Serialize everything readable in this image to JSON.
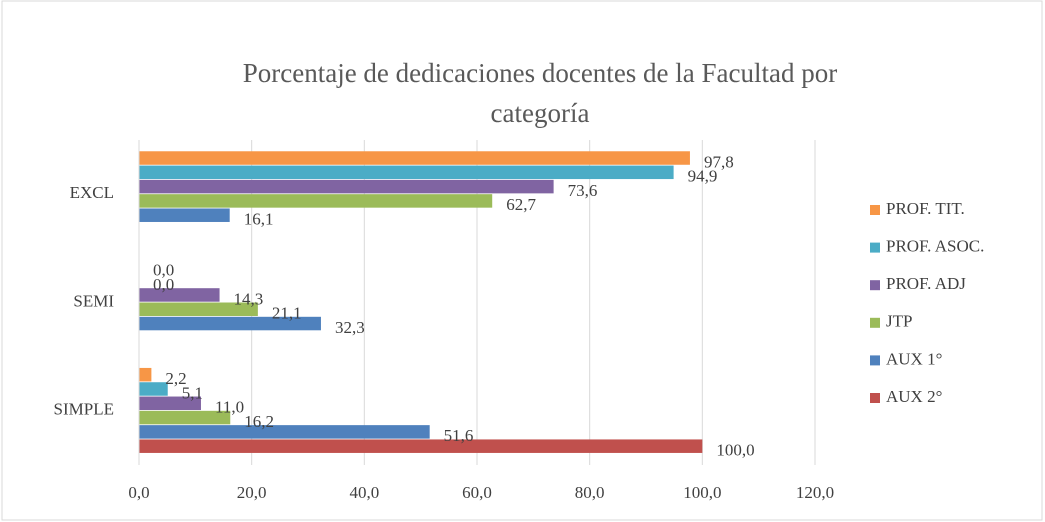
{
  "chart_data": {
    "type": "barh",
    "title": [
      "Porcentaje de dedicaciones docentes de la Facultad por",
      "categoría"
    ],
    "categories": [
      "SIMPLE",
      "SEMI",
      "EXCL"
    ],
    "series": [
      {
        "name": "AUX 2°",
        "color": "#c0504d",
        "values": [
          100.0,
          null,
          null
        ],
        "value_labels": [
          "100,0",
          null,
          null
        ]
      },
      {
        "name": "AUX 1°",
        "color": "#4f81bd",
        "values": [
          51.6,
          32.3,
          16.1
        ],
        "value_labels": [
          "51,6",
          "32,3",
          "16,1"
        ]
      },
      {
        "name": "JTP",
        "color": "#9bbb59",
        "values": [
          16.2,
          21.1,
          62.7
        ],
        "value_labels": [
          "16,2",
          "21,1",
          "62,7"
        ]
      },
      {
        "name": "PROF. ADJ",
        "color": "#8064a2",
        "values": [
          11.0,
          14.3,
          73.6
        ],
        "value_labels": [
          "11,0",
          "14,3",
          "73,6"
        ]
      },
      {
        "name": "PROF. ASOC.",
        "color": "#4bacc6",
        "values": [
          5.1,
          0.0,
          94.9
        ],
        "value_labels": [
          "5,1",
          "0,0",
          "94,9"
        ]
      },
      {
        "name": "PROF. TIT.",
        "color": "#f79646",
        "values": [
          2.2,
          0.0,
          97.8
        ],
        "value_labels": [
          "2,2",
          "0,0",
          "97,8"
        ]
      }
    ],
    "xlim": [
      0,
      120
    ],
    "xticks": [
      {
        "value": 0,
        "label": "0,0"
      },
      {
        "value": 20,
        "label": "20,0"
      },
      {
        "value": 40,
        "label": "40,0"
      },
      {
        "value": 60,
        "label": "60,0"
      },
      {
        "value": 80,
        "label": "80,0"
      },
      {
        "value": 100,
        "label": "100,0"
      },
      {
        "value": 120,
        "label": "120,0"
      }
    ],
    "grid": true,
    "legend": "right"
  }
}
